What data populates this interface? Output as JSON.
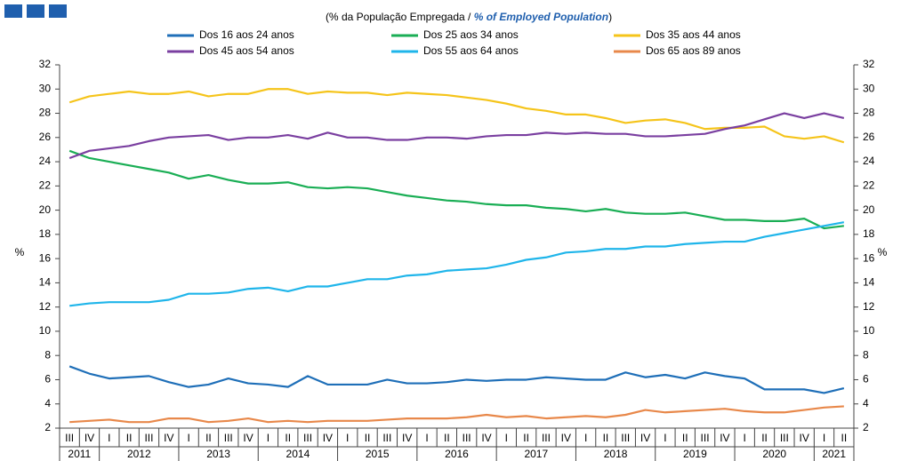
{
  "chart_data": {
    "type": "line",
    "subtitle_parts": [
      "(% da População Empregada /",
      "% of Employed Population",
      ")"
    ],
    "ylabel": "%",
    "ylim": [
      2,
      32
    ],
    "yticks": [
      2,
      4,
      6,
      8,
      10,
      12,
      14,
      16,
      18,
      20,
      22,
      24,
      26,
      28,
      30,
      32
    ],
    "grid": false,
    "categories": [
      "III",
      "IV",
      "I",
      "II",
      "III",
      "IV",
      "I",
      "II",
      "III",
      "IV",
      "I",
      "II",
      "III",
      "IV",
      "I",
      "II",
      "III",
      "IV",
      "I",
      "II",
      "III",
      "IV",
      "I",
      "II",
      "III",
      "IV",
      "I",
      "II",
      "III",
      "IV",
      "I",
      "II",
      "III",
      "IV",
      "I",
      "II",
      "III",
      "IV",
      "I",
      "II"
    ],
    "year_labels": [
      "2011",
      "2012",
      "2013",
      "2014",
      "2015",
      "2016",
      "2017",
      "2018",
      "2019",
      "2020",
      "2021"
    ],
    "series": [
      {
        "name": "Dos 16 aos 24 anos",
        "color": "#1f6fb8",
        "values": [
          7.1,
          6.5,
          6.1,
          6.2,
          6.3,
          5.8,
          5.4,
          5.6,
          6.1,
          5.7,
          5.6,
          5.4,
          6.3,
          5.6,
          5.6,
          5.6,
          6.0,
          5.7,
          5.7,
          5.8,
          6.0,
          5.9,
          6.0,
          6.0,
          6.2,
          6.1,
          6.0,
          6.0,
          6.6,
          6.2,
          6.4,
          6.1,
          6.6,
          6.3,
          6.1,
          5.2,
          5.2,
          5.2,
          4.9,
          5.3
        ]
      },
      {
        "name": "Dos 25 aos 34 anos",
        "color": "#1aae55",
        "values": [
          24.9,
          24.3,
          24.0,
          23.7,
          23.4,
          23.1,
          22.6,
          22.9,
          22.5,
          22.2,
          22.2,
          22.3,
          21.9,
          21.8,
          21.9,
          21.8,
          21.5,
          21.2,
          21.0,
          20.8,
          20.7,
          20.5,
          20.4,
          20.4,
          20.2,
          20.1,
          19.9,
          20.1,
          19.8,
          19.7,
          19.7,
          19.8,
          19.5,
          19.2,
          19.2,
          19.1,
          19.1,
          19.3,
          18.5,
          18.7
        ]
      },
      {
        "name": "Dos 35 aos 44 anos",
        "color": "#f5c41a",
        "values": [
          28.9,
          29.4,
          29.6,
          29.8,
          29.6,
          29.6,
          29.8,
          29.4,
          29.6,
          29.6,
          30.0,
          30.0,
          29.6,
          29.8,
          29.7,
          29.7,
          29.5,
          29.7,
          29.6,
          29.5,
          29.3,
          29.1,
          28.8,
          28.4,
          28.2,
          27.9,
          27.9,
          27.6,
          27.2,
          27.4,
          27.5,
          27.2,
          26.7,
          26.8,
          26.8,
          26.9,
          26.1,
          25.9,
          26.1,
          25.6
        ]
      },
      {
        "name": "Dos 45 aos 54 anos",
        "color": "#7a3fa0",
        "values": [
          24.3,
          24.9,
          25.1,
          25.3,
          25.7,
          26.0,
          26.1,
          26.2,
          25.8,
          26.0,
          26.0,
          26.2,
          25.9,
          26.4,
          26.0,
          26.0,
          25.8,
          25.8,
          26.0,
          26.0,
          25.9,
          26.1,
          26.2,
          26.2,
          26.4,
          26.3,
          26.4,
          26.3,
          26.3,
          26.1,
          26.1,
          26.2,
          26.3,
          26.7,
          27.0,
          27.5,
          28.0,
          27.6,
          28.0,
          27.6
        ]
      },
      {
        "name": "Dos 55 aos 64 anos",
        "color": "#1fb5ea",
        "values": [
          12.1,
          12.3,
          12.4,
          12.4,
          12.4,
          12.6,
          13.1,
          13.1,
          13.2,
          13.5,
          13.6,
          13.3,
          13.7,
          13.7,
          14.0,
          14.3,
          14.3,
          14.6,
          14.7,
          15.0,
          15.1,
          15.2,
          15.5,
          15.9,
          16.1,
          16.5,
          16.6,
          16.8,
          16.8,
          17.0,
          17.0,
          17.2,
          17.3,
          17.4,
          17.4,
          17.8,
          18.1,
          18.4,
          18.7,
          19.0
        ]
      },
      {
        "name": "Dos 65 aos 89 anos",
        "color": "#e8884a",
        "values": [
          2.5,
          2.6,
          2.7,
          2.5,
          2.5,
          2.8,
          2.8,
          2.5,
          2.6,
          2.8,
          2.5,
          2.6,
          2.5,
          2.6,
          2.6,
          2.6,
          2.7,
          2.8,
          2.8,
          2.8,
          2.9,
          3.1,
          2.9,
          3.0,
          2.8,
          2.9,
          3.0,
          2.9,
          3.1,
          3.5,
          3.3,
          3.4,
          3.5,
          3.6,
          3.4,
          3.3,
          3.3,
          3.5,
          3.7,
          3.8
        ]
      }
    ]
  }
}
